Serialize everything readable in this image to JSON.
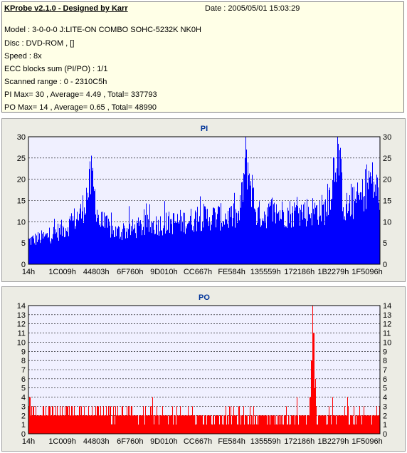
{
  "header": {
    "title": "KProbe v2.1.0 - Designed by Karr",
    "date": "Date : 2005/05/01 15:03:29",
    "lines": [
      "Model : 3-0-0-0 J:LITE-ON COMBO SOHC-5232K NK0H",
      "Disc : DVD-ROM ,  []",
      "Speed : 8x",
      "ECC blocks sum (PI/PO) : 1/1",
      "Scanned range : 0 - 2310C5h",
      "PI Max= 30 , Average= 4.49 , Total= 337793",
      "PO Max= 14 , Average= 0.65 , Total= 48990"
    ]
  },
  "colors": {
    "pi": "#0000ff",
    "po": "#ff0000",
    "plot_bg": "#f0f0ff",
    "grid": "#000000"
  },
  "chart_data": [
    {
      "type": "area",
      "title": "PI",
      "xlabel": "",
      "ylabel": "",
      "x_tick_labels": [
        "14h",
        "1C009h",
        "44803h",
        "6F760h",
        "9D010h",
        "CC667h",
        "FE584h",
        "135559h",
        "172186h",
        "1B2279h",
        "1F5096h"
      ],
      "y_ticks": [
        0,
        5,
        10,
        15,
        20,
        25,
        30
      ],
      "ylim": [
        0,
        30
      ],
      "grid": true,
      "series": [
        {
          "x": [
            0,
            0.05,
            0.1,
            0.15,
            0.18,
            0.2,
            0.25,
            0.3,
            0.35,
            0.4,
            0.45,
            0.5,
            0.55,
            0.6,
            0.62,
            0.65,
            0.7,
            0.75,
            0.8,
            0.85,
            0.88,
            0.9,
            0.95,
            0.97,
            1.0
          ],
          "values": [
            6,
            7,
            9,
            13,
            22,
            11,
            8,
            9,
            10,
            10.5,
            11,
            12,
            12,
            12,
            27,
            12.5,
            13,
            13,
            13.5,
            14,
            30,
            14,
            17,
            22,
            18
          ],
          "max": 30,
          "average": 4.49
        }
      ]
    },
    {
      "type": "area",
      "title": "PO",
      "xlabel": "",
      "ylabel": "",
      "x_tick_labels": [
        "14h",
        "1C009h",
        "44803h",
        "6F760h",
        "9D010h",
        "CC667h",
        "FE584h",
        "135559h",
        "172186h",
        "1B2279h",
        "1F5096h"
      ],
      "y_ticks": [
        0,
        1,
        2,
        3,
        4,
        5,
        6,
        7,
        8,
        9,
        10,
        11,
        12,
        13,
        14
      ],
      "ylim": [
        0,
        14
      ],
      "grid": true,
      "series": [
        {
          "x": [
            0,
            0.1,
            0.2,
            0.3,
            0.4,
            0.5,
            0.6,
            0.7,
            0.8,
            0.81,
            0.82,
            0.9,
            1.0
          ],
          "values": [
            2.5,
            2.5,
            2.5,
            2.3,
            2.2,
            2.2,
            2.2,
            2.1,
            2.1,
            14,
            2.1,
            2.2,
            2.3
          ],
          "max": 14,
          "average": 0.65
        }
      ]
    }
  ]
}
